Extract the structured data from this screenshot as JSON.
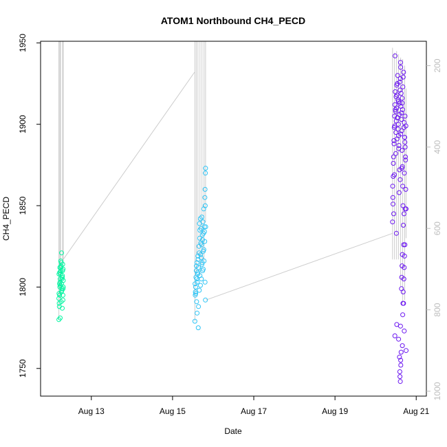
{
  "chart_data": {
    "type": "scatter",
    "title": "ATOM1 Northbound CH4_PECD",
    "xlabel": "Date",
    "ylabel": "CH4_PECD",
    "x_ticks": [
      "Aug 13",
      "Aug 15",
      "Aug 17",
      "Aug 19",
      "Aug 21"
    ],
    "y_ticks": [
      "1750",
      "1800",
      "1850",
      "1900",
      "1950"
    ],
    "y2_ticks": [
      "200",
      "400",
      "600",
      "800",
      "1000"
    ],
    "xlim": [
      "2016-08-11 18:00",
      "2016-08-21 06:00"
    ],
    "ylim": [
      1733,
      1951
    ],
    "y2lim": [
      1012,
      140
    ],
    "secondary_axis_color": "#bdbdbd",
    "line_color": "#cccccc",
    "marker": "open-circle",
    "grid": false,
    "series": [
      {
        "color": "#00f5a0",
        "x": [
          "2016-08-12 04:48",
          "2016-08-12 05:00",
          "2016-08-12 05:12",
          "2016-08-12 05:24",
          "2016-08-12 05:36",
          "2016-08-12 05:48",
          "2016-08-12 06:00",
          "2016-08-12 06:12",
          "2016-08-12 06:24",
          "2016-08-12 06:36",
          "2016-08-12 06:48",
          "2016-08-12 07:00",
          "2016-08-12 07:12",
          "2016-08-12 07:24",
          "2016-08-12 04:54",
          "2016-08-12 05:18",
          "2016-08-12 05:42",
          "2016-08-12 06:06",
          "2016-08-12 06:30",
          "2016-08-12 06:54",
          "2016-08-12 07:18",
          "2016-08-12 04:48",
          "2016-08-12 05:30",
          "2016-08-12 06:18",
          "2016-08-12 07:06",
          "2016-08-12 05:06",
          "2016-08-12 06:42",
          "2016-08-12 05:54",
          "2016-08-12 07:24",
          "2016-08-12 04:54",
          "2016-08-12 05:36",
          "2016-08-12 06:24",
          "2016-08-12 07:12",
          "2016-08-12 05:12",
          "2016-08-12 06:00",
          "2016-08-12 06:48",
          "2016-08-12 07:18",
          "2016-08-12 05:24",
          "2016-08-12 06:12",
          "2016-08-12 06:36"
        ],
        "y": [
          1780,
          1790,
          1795,
          1800,
          1805,
          1808,
          1812,
          1815,
          1802,
          1798,
          1806,
          1810,
          1792,
          1804,
          1796,
          1809,
          1801,
          1813,
          1799,
          1807,
          1811,
          1793,
          1803,
          1797,
          1814,
          1788,
          1806,
          1816,
          1800,
          1808,
          1781,
          1821,
          1795,
          1802,
          1810,
          1787,
          1799,
          1812,
          1791,
          1805
        ]
      },
      {
        "color": "#2ec4f5",
        "x": [
          "2016-08-15 13:12",
          "2016-08-15 13:24",
          "2016-08-15 13:36",
          "2016-08-15 13:48",
          "2016-08-15 14:00",
          "2016-08-15 14:12",
          "2016-08-15 14:24",
          "2016-08-15 14:36",
          "2016-08-15 14:48",
          "2016-08-15 15:00",
          "2016-08-15 15:12",
          "2016-08-15 15:24",
          "2016-08-15 15:36",
          "2016-08-15 15:48",
          "2016-08-15 16:00",
          "2016-08-15 16:12",
          "2016-08-15 16:24",
          "2016-08-15 16:36",
          "2016-08-15 16:48",
          "2016-08-15 17:00",
          "2016-08-15 17:12",
          "2016-08-15 17:24",
          "2016-08-15 17:36",
          "2016-08-15 17:48",
          "2016-08-15 18:00",
          "2016-08-15 18:12",
          "2016-08-15 18:24",
          "2016-08-15 18:36",
          "2016-08-15 18:48",
          "2016-08-15 19:00",
          "2016-08-15 13:18",
          "2016-08-15 13:42",
          "2016-08-15 14:06",
          "2016-08-15 14:30",
          "2016-08-15 14:54",
          "2016-08-15 15:18",
          "2016-08-15 15:42",
          "2016-08-15 16:06",
          "2016-08-15 16:30",
          "2016-08-15 16:54",
          "2016-08-15 17:18",
          "2016-08-15 17:42",
          "2016-08-15 18:06",
          "2016-08-15 18:30",
          "2016-08-15 18:54",
          "2016-08-15 13:30",
          "2016-08-15 14:18",
          "2016-08-15 15:06",
          "2016-08-15 15:54",
          "2016-08-15 16:42",
          "2016-08-15 17:30",
          "2016-08-15 18:18",
          "2016-08-15 19:06",
          "2016-08-15 19:12",
          "2016-08-15 19:18",
          "2016-08-15 19:24",
          "2016-08-15 19:30",
          "2016-08-15 19:12",
          "2016-08-15 19:24",
          "2016-08-15 19:36"
        ],
        "y": [
          1779,
          1795,
          1800,
          1806,
          1810,
          1791,
          1815,
          1803,
          1808,
          1819,
          1775,
          1812,
          1825,
          1798,
          1830,
          1807,
          1842,
          1820,
          1836,
          1805,
          1826,
          1814,
          1832,
          1810,
          1840,
          1822,
          1848,
          1816,
          1837,
          1828,
          1802,
          1796,
          1813,
          1784,
          1809,
          1788,
          1821,
          1835,
          1801,
          1818,
          1843,
          1829,
          1811,
          1823,
          1834,
          1797,
          1805,
          1817,
          1839,
          1827,
          1815,
          1833,
          1855,
          1860,
          1850,
          1870,
          1873,
          1803,
          1792,
          1837
        ]
      },
      {
        "color": "#6a14f0",
        "x": [
          "2016-08-20 10:00",
          "2016-08-20 10:12",
          "2016-08-20 10:24",
          "2016-08-20 10:36",
          "2016-08-20 10:48",
          "2016-08-20 11:00",
          "2016-08-20 11:12",
          "2016-08-20 11:24",
          "2016-08-20 11:36",
          "2016-08-20 11:48",
          "2016-08-20 12:00",
          "2016-08-20 12:12",
          "2016-08-20 12:24",
          "2016-08-20 12:36",
          "2016-08-20 12:48",
          "2016-08-20 13:00",
          "2016-08-20 13:12",
          "2016-08-20 13:24",
          "2016-08-20 13:36",
          "2016-08-20 13:48",
          "2016-08-20 14:00",
          "2016-08-20 14:12",
          "2016-08-20 14:24",
          "2016-08-20 14:36",
          "2016-08-20 14:48",
          "2016-08-20 15:00",
          "2016-08-20 15:12",
          "2016-08-20 15:24",
          "2016-08-20 15:36",
          "2016-08-20 15:48",
          "2016-08-20 16:00",
          "2016-08-20 16:12",
          "2016-08-20 16:24",
          "2016-08-20 16:36",
          "2016-08-20 16:48",
          "2016-08-20 17:00",
          "2016-08-20 17:12",
          "2016-08-20 17:24",
          "2016-08-20 17:36",
          "2016-08-20 17:48",
          "2016-08-20 18:00",
          "2016-08-20 10:06",
          "2016-08-20 10:30",
          "2016-08-20 10:54",
          "2016-08-20 11:18",
          "2016-08-20 11:42",
          "2016-08-20 12:06",
          "2016-08-20 12:30",
          "2016-08-20 12:54",
          "2016-08-20 13:18",
          "2016-08-20 13:42",
          "2016-08-20 14:06",
          "2016-08-20 14:30",
          "2016-08-20 14:54",
          "2016-08-20 15:18",
          "2016-08-20 15:42",
          "2016-08-20 16:06",
          "2016-08-20 16:30",
          "2016-08-20 16:54",
          "2016-08-20 17:18",
          "2016-08-20 17:42",
          "2016-08-20 10:18",
          "2016-08-20 11:06",
          "2016-08-20 11:54",
          "2016-08-20 12:42",
          "2016-08-20 13:30",
          "2016-08-20 14:18",
          "2016-08-20 15:06",
          "2016-08-20 15:54",
          "2016-08-20 16:42",
          "2016-08-20 17:30",
          "2016-08-20 10:42",
          "2016-08-20 12:18",
          "2016-08-20 13:54",
          "2016-08-20 15:30",
          "2016-08-20 17:06",
          "2016-08-20 11:30",
          "2016-08-20 14:42",
          "2016-08-20 16:18",
          "2016-08-20 13:06",
          "2016-08-20 15:42",
          "2016-08-20 17:54",
          "2016-08-20 11:24",
          "2016-08-20 12:30",
          "2016-08-20 13:36",
          "2016-08-20 14:42",
          "2016-08-20 15:48",
          "2016-08-20 16:54",
          "2016-08-20 18:00",
          "2016-08-20 14:06",
          "2016-08-20 14:18",
          "2016-08-20 14:24",
          "2016-08-20 14:36",
          "2016-08-20 14:48",
          "2016-08-20 14:54",
          "2016-08-20 15:06",
          "2016-08-20 15:18",
          "2016-08-20 15:24",
          "2016-08-20 15:36",
          "2016-08-20 15:48",
          "2016-08-20 16:00",
          "2016-08-20 16:12",
          "2016-08-20 16:18",
          "2016-08-20 16:30",
          "2016-08-20 16:42",
          "2016-08-20 16:54",
          "2016-08-20 17:06",
          "2016-08-20 17:18",
          "2016-08-20 17:30"
        ],
        "y": [
          1840,
          1855,
          1868,
          1880,
          1890,
          1898,
          1905,
          1912,
          1920,
          1908,
          1895,
          1902,
          1910,
          1918,
          1925,
          1930,
          1915,
          1900,
          1893,
          1887,
          1906,
          1913,
          1921,
          1928,
          1935,
          1911,
          1903,
          1896,
          1884,
          1874,
          1862,
          1850,
          1838,
          1826,
          1845,
          1870,
          1892,
          1905,
          1880,
          1860,
          1848,
          1862,
          1876,
          1888,
          1899,
          1909,
          1917,
          1924,
          1904,
          1897,
          1885,
          1872,
          1866,
          1894,
          1907,
          1916,
          1923,
          1932,
          1901,
          1889,
          1878,
          1851,
          1869,
          1882,
          1891,
          1914,
          1926,
          1919,
          1909,
          1898,
          1886,
          1845,
          1833,
          1858,
          1873,
          1892,
          1942,
          1938,
          1929,
          1904,
          1913,
          1899,
          1770,
          1777,
          1768,
          1776,
          1764,
          1773,
          1761,
          1757,
          1748,
          1745,
          1742,
          1755,
          1752,
          1760,
          1799,
          1806,
          1813,
          1820,
          1783,
          1790,
          1797,
          1790,
          1805,
          1812,
          1819,
          1826,
          1848
        ]
      }
    ],
    "lines": [
      {
        "x": [
          "2016-08-12 07:24",
          "2016-08-15 13:00"
        ],
        "y": [
          1817,
          1932
        ]
      },
      {
        "x": [
          "2016-08-15 19:40",
          "2016-08-20 10:00"
        ],
        "y": [
          1792,
          1833
        ]
      },
      {
        "x": [
          "2016-08-12 04:48",
          "2016-08-12 04:48"
        ],
        "y": [
          1951,
          1780
        ]
      },
      {
        "x": [
          "2016-08-12 05:24",
          "2016-08-12 05:24"
        ],
        "y": [
          1951,
          1792
        ]
      },
      {
        "x": [
          "2016-08-12 05:48",
          "2016-08-12 05:48"
        ],
        "y": [
          1951,
          1795
        ]
      },
      {
        "x": [
          "2016-08-12 07:00",
          "2016-08-12 07:00"
        ],
        "y": [
          1951,
          1808
        ]
      },
      {
        "x": [
          "2016-08-12 07:24",
          "2016-08-12 07:24"
        ],
        "y": [
          1951,
          1815
        ]
      },
      {
        "x": [
          "2016-08-15 13:12",
          "2016-08-15 13:12"
        ],
        "y": [
          1951,
          1779
        ]
      },
      {
        "x": [
          "2016-08-15 14:00",
          "2016-08-15 14:00"
        ],
        "y": [
          1951,
          1810
        ]
      },
      {
        "x": [
          "2016-08-15 15:00",
          "2016-08-15 15:00"
        ],
        "y": [
          1951,
          1819
        ]
      },
      {
        "x": [
          "2016-08-15 16:12",
          "2016-08-15 16:12"
        ],
        "y": [
          1951,
          1807
        ]
      },
      {
        "x": [
          "2016-08-15 17:24",
          "2016-08-15 17:24"
        ],
        "y": [
          1951,
          1814
        ]
      },
      {
        "x": [
          "2016-08-15 18:36",
          "2016-08-15 18:36"
        ],
        "y": [
          1951,
          1816
        ]
      },
      {
        "x": [
          "2016-08-15 19:30",
          "2016-08-15 19:30"
        ],
        "y": [
          1951,
          1840
        ]
      },
      {
        "x": [
          "2016-08-20 10:00",
          "2016-08-20 10:00"
        ],
        "y": [
          1947,
          1817
        ]
      },
      {
        "x": [
          "2016-08-20 11:12",
          "2016-08-20 11:12"
        ],
        "y": [
          1944,
          1817
        ]
      },
      {
        "x": [
          "2016-08-20 12:24",
          "2016-08-20 12:24"
        ],
        "y": [
          1945,
          1817
        ]
      },
      {
        "x": [
          "2016-08-20 13:36",
          "2016-08-20 13:36"
        ],
        "y": [
          1943,
          1817
        ]
      },
      {
        "x": [
          "2016-08-20 14:48",
          "2016-08-20 14:48"
        ],
        "y": [
          1941,
          1800
        ]
      },
      {
        "x": [
          "2016-08-20 16:00",
          "2016-08-20 16:00"
        ],
        "y": [
          1940,
          1790
        ]
      },
      {
        "x": [
          "2016-08-20 17:12",
          "2016-08-20 17:12"
        ],
        "y": [
          1936,
          1792
        ]
      },
      {
        "x": [
          "2016-08-20 18:00",
          "2016-08-20 18:00"
        ],
        "y": [
          1922,
          1830
        ]
      }
    ]
  }
}
